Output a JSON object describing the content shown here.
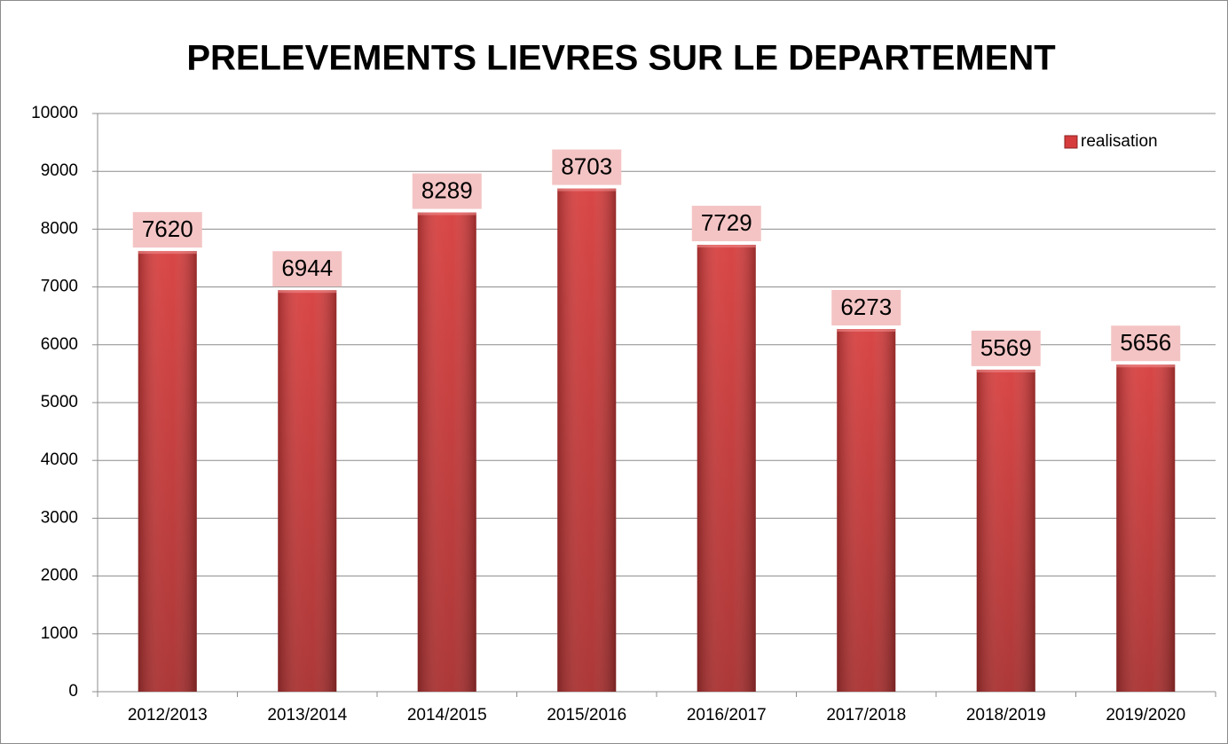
{
  "chart_data": {
    "type": "bar",
    "title": "PRELEVEMENTS LIEVRES SUR LE DEPARTEMENT",
    "categories": [
      "2012/2013",
      "2013/2014",
      "2014/2015",
      "2015/2016",
      "2016/2017",
      "2017/2018",
      "2018/2019",
      "2019/2020"
    ],
    "series": [
      {
        "name": "realisation",
        "color": "#d63c3c",
        "values": [
          7620,
          6944,
          8289,
          8703,
          7729,
          6273,
          5569,
          5656
        ]
      }
    ],
    "ylim": [
      0,
      10000
    ],
    "yticks": [
      0,
      1000,
      2000,
      3000,
      4000,
      5000,
      6000,
      7000,
      8000,
      9000,
      10000
    ],
    "grid": true,
    "legend": "top-right"
  }
}
